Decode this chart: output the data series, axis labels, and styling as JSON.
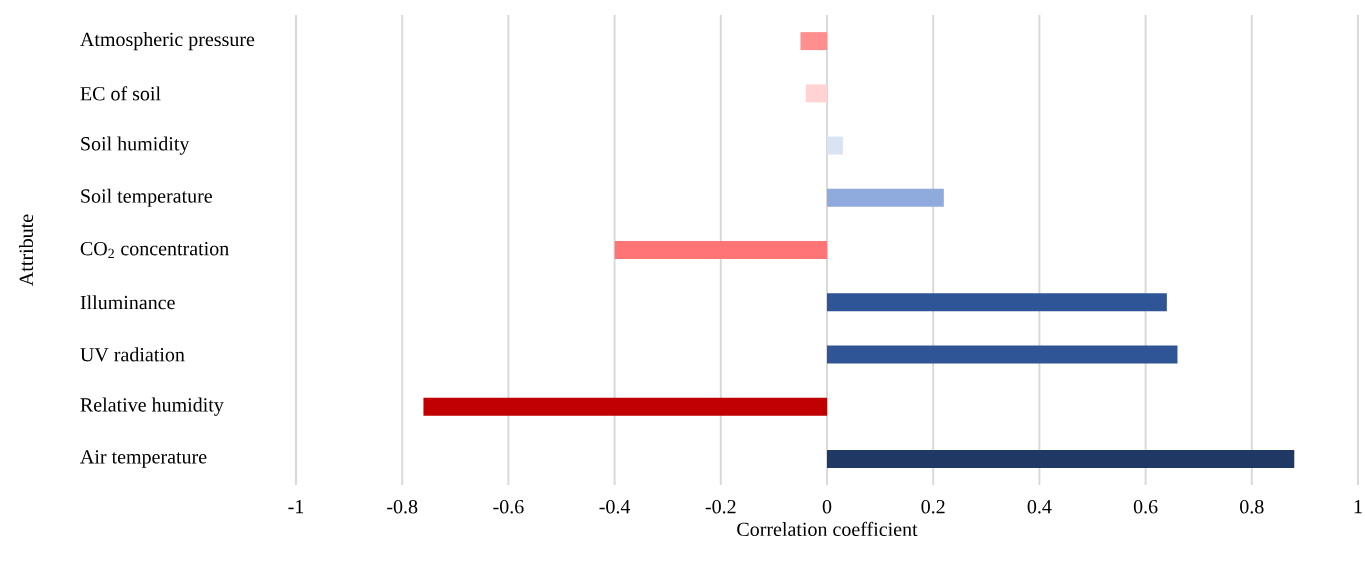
{
  "chart_data": {
    "type": "bar",
    "orientation": "horizontal",
    "xlabel": "Correlation coefficient",
    "ylabel": "Attribute",
    "categories": [
      "Atmospheric pressure",
      "EC of soil",
      "Soil humidity",
      "Soil temperature",
      "CO$_{2}$ concentration",
      "Illuminance",
      "UV radiation",
      "Relative humidity",
      "Air temperature"
    ],
    "values": [
      -0.05,
      -0.04,
      0.03,
      0.22,
      -0.4,
      0.64,
      0.66,
      -0.76,
      0.88
    ],
    "colors": [
      "#ff8f8f",
      "#ffd3d3",
      "#dae3f3",
      "#8faadc",
      "#ff7575",
      "#2f5597",
      "#2f5597",
      "#c00000",
      "#203864"
    ],
    "xlim": [
      -1,
      1
    ],
    "xticks": [
      -1,
      -0.8,
      -0.6,
      -0.4,
      -0.2,
      0,
      0.2,
      0.4,
      0.6,
      0.8,
      1
    ],
    "grid": "x"
  }
}
